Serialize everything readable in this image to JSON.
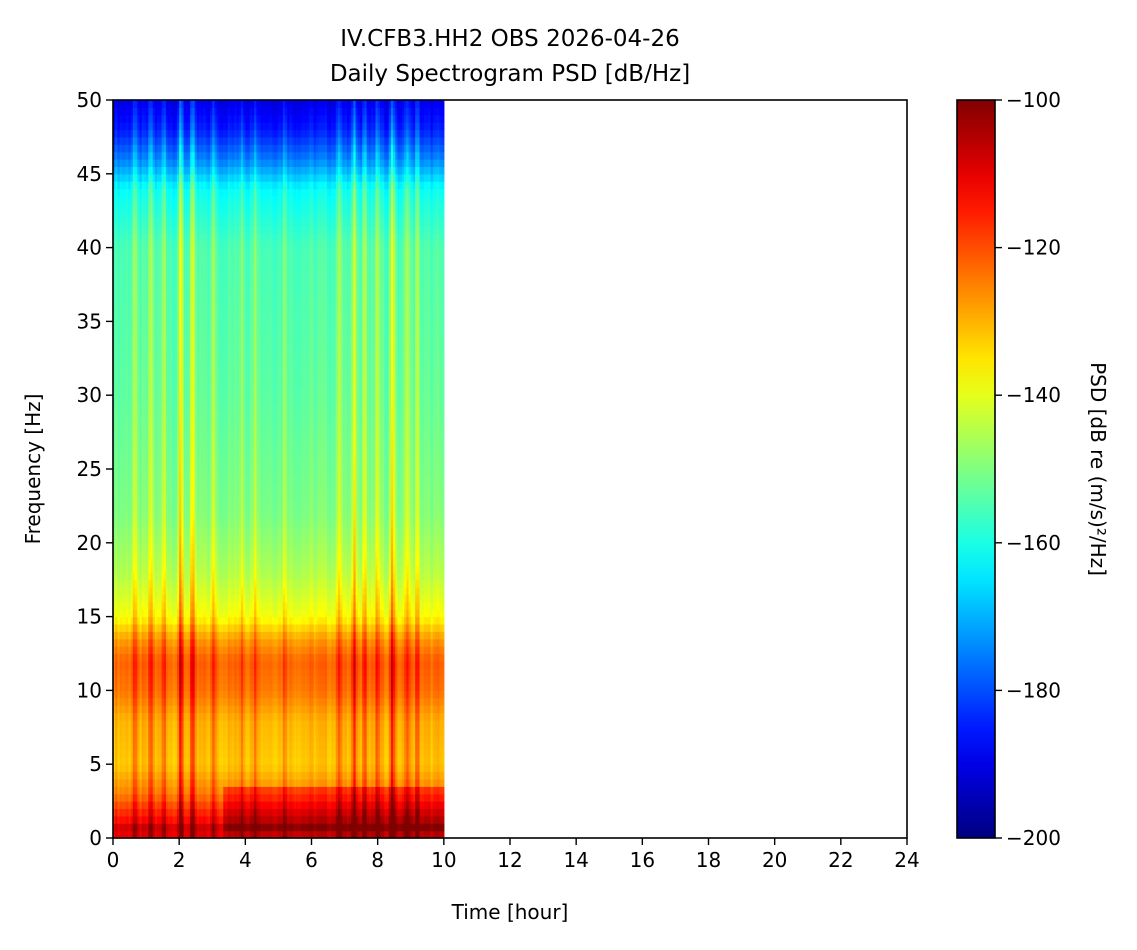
{
  "chart_data": {
    "type": "heatmap",
    "title": "IV.CFB3.HH2 OBS 2026-04-26",
    "subtitle": "Daily Spectrogram PSD [dB/Hz]",
    "xlabel": "Time [hour]",
    "ylabel": "Frequency [Hz]",
    "xlim": [
      0,
      24
    ],
    "ylim": [
      0,
      50
    ],
    "xticks": [
      "0",
      "2",
      "4",
      "6",
      "8",
      "10",
      "12",
      "14",
      "16",
      "18",
      "20",
      "22",
      "24"
    ],
    "yticks": [
      "0",
      "5",
      "10",
      "15",
      "20",
      "25",
      "30",
      "35",
      "40",
      "45",
      "50"
    ],
    "data_time_range": [
      0,
      10
    ],
    "colormap": "jet",
    "colorbar": {
      "label": "PSD [dB re (m/s)²/Hz]",
      "range": [
        -200,
        -100
      ],
      "ticks": [
        "−100",
        "−120",
        "−140",
        "−160",
        "−180",
        "−200"
      ],
      "tick_values": [
        -100,
        -120,
        -140,
        -160,
        -180,
        -200
      ]
    },
    "base_psd_profile": {
      "frequency_hz": [
        0,
        0.5,
        1,
        2,
        3,
        5,
        8,
        10,
        12,
        13.5,
        15,
        18,
        22,
        30,
        40,
        44,
        46,
        48,
        50
      ],
      "psd_db": [
        -115,
        -105,
        -112,
        -118,
        -125,
        -132,
        -130,
        -124,
        -122,
        -128,
        -138,
        -145,
        -150,
        -153,
        -155,
        -162,
        -175,
        -185,
        -190
      ]
    },
    "events": [
      {
        "time_h": 0.65,
        "boost_db": 8
      },
      {
        "time_h": 1.15,
        "boost_db": 10
      },
      {
        "time_h": 1.55,
        "boost_db": 9
      },
      {
        "time_h": 2.05,
        "boost_db": 16
      },
      {
        "time_h": 2.4,
        "boost_db": 14
      },
      {
        "time_h": 3.05,
        "boost_db": 8
      },
      {
        "time_h": 3.9,
        "boost_db": 7
      },
      {
        "time_h": 4.3,
        "boost_db": 9
      },
      {
        "time_h": 5.2,
        "boost_db": 6
      },
      {
        "time_h": 6.85,
        "boost_db": 11
      },
      {
        "time_h": 7.3,
        "boost_db": 13
      },
      {
        "time_h": 7.6,
        "boost_db": 12
      },
      {
        "time_h": 8.0,
        "boost_db": 10
      },
      {
        "time_h": 8.45,
        "boost_db": 18
      },
      {
        "time_h": 8.9,
        "boost_db": 11
      },
      {
        "time_h": 9.2,
        "boost_db": 9
      }
    ],
    "low_frequency_enhancement": {
      "after_time_h": 3.3,
      "below_hz": 3.5,
      "boost_db": 8
    }
  }
}
